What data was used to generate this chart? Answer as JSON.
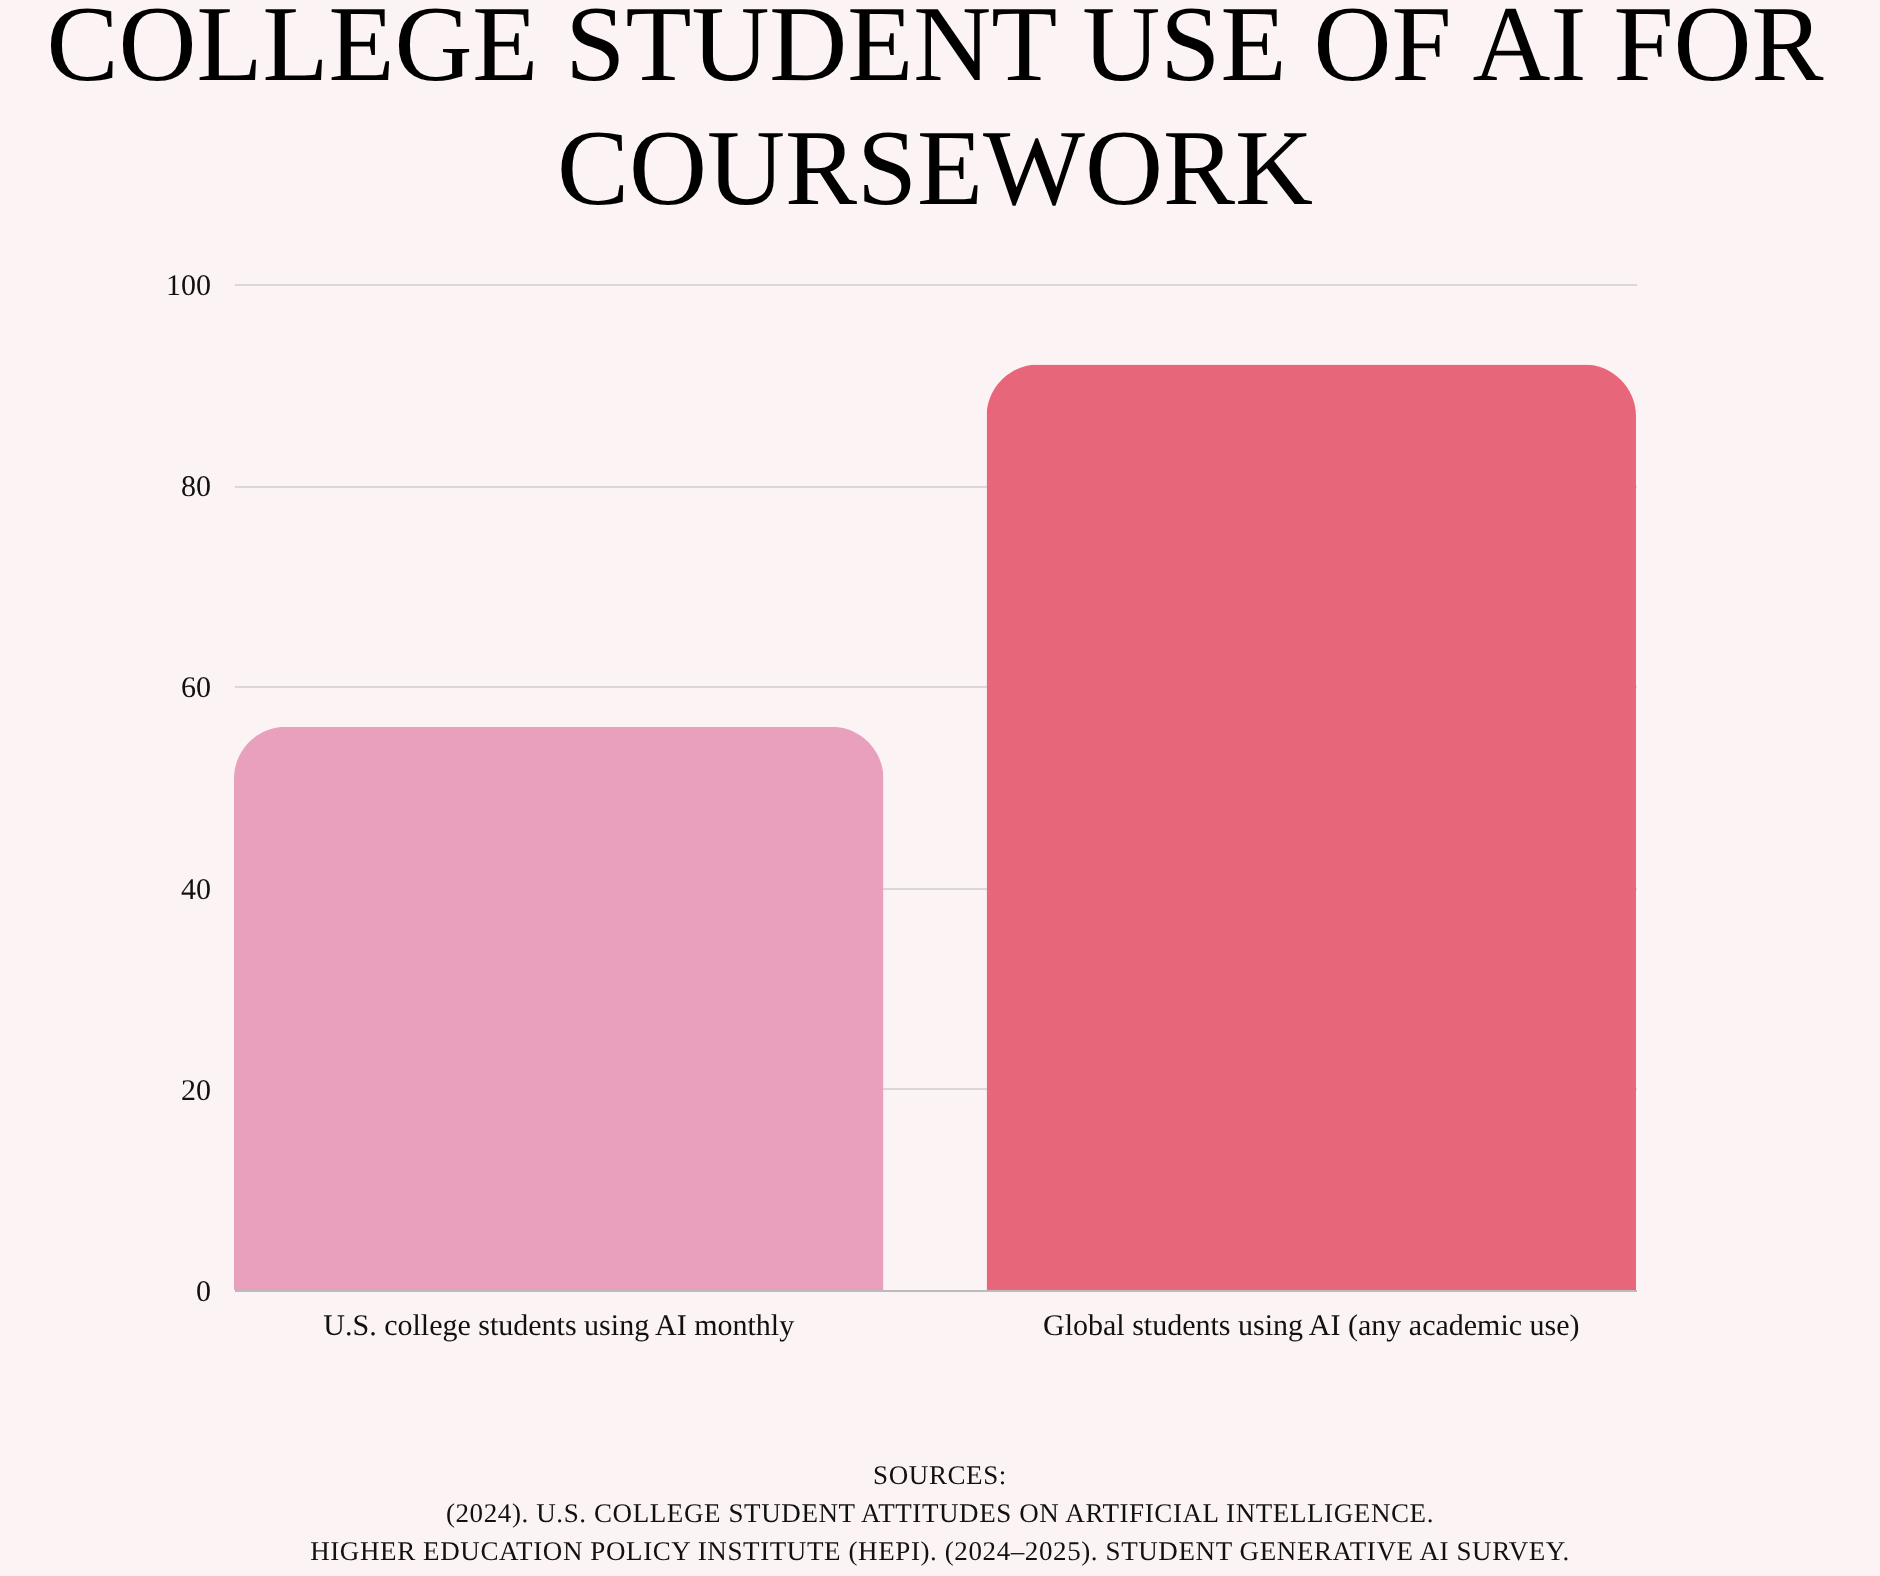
{
  "chart_data": {
    "type": "bar",
    "title": "COLLEGE STUDENT USE OF AI FOR COURSEWORK",
    "categories": [
      "U.S. college students using AI monthly",
      "Global students using AI (any academic use)"
    ],
    "values": [
      56,
      92
    ],
    "colors": [
      "#e8a0bd",
      "#e8667a"
    ],
    "ylim": [
      0,
      100
    ],
    "yticks": [
      0,
      20,
      40,
      60,
      80,
      100
    ],
    "grid": "y",
    "annotations": [
      "SOURCES:",
      "(2024). U.S. COLLEGE STUDENT ATTITUDES ON ARTIFICIAL INTELLIGENCE.",
      "HIGHER EDUCATION POLICY INSTITUTE (HEPI). (2024–2025). STUDENT GENERATIVE AI SURVEY."
    ]
  }
}
